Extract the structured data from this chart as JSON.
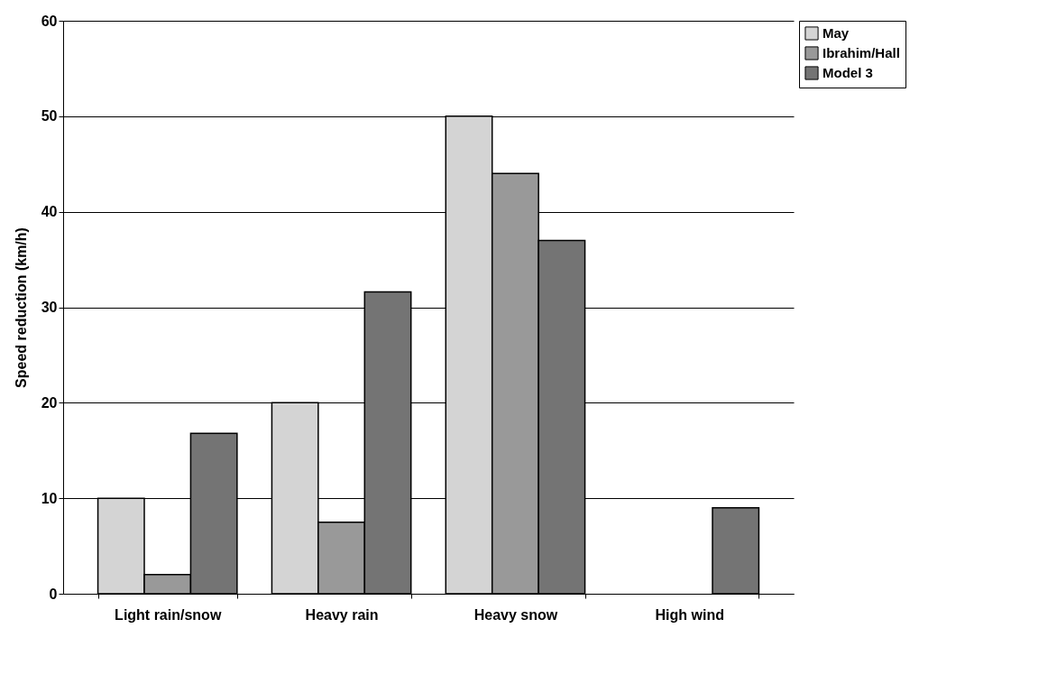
{
  "chart_data": {
    "type": "bar",
    "ylabel": "Speed reduction (km/h)",
    "categories": [
      "Light rain/snow",
      "Heavy rain",
      "Heavy snow",
      "High wind"
    ],
    "series": [
      {
        "name": "May",
        "color": "#d4d4d4",
        "values": [
          10,
          20,
          50,
          null
        ]
      },
      {
        "name": "Ibrahim/Hall",
        "color": "#999999",
        "values": [
          2,
          7.5,
          44,
          null
        ]
      },
      {
        "name": "Model 3",
        "color": "#747474",
        "values": [
          16.8,
          31.6,
          37,
          9
        ]
      }
    ],
    "ylim": [
      0,
      60
    ],
    "yticks": [
      0,
      10,
      20,
      30,
      40,
      50,
      60
    ],
    "grid": "y",
    "legend": "right"
  }
}
